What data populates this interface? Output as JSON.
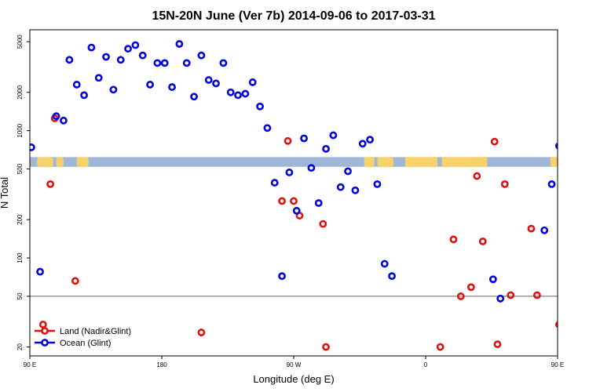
{
  "chart_data": {
    "type": "scatter",
    "title": "15N-20N June (Ver 7b)   2014-09-06 to 2017-03-31",
    "xlabel": "Longitude (deg E)",
    "ylabel": "N Total",
    "xlim": [
      90,
      450
    ],
    "ylim": [
      17,
      6200
    ],
    "y_scale": "log",
    "x_ticks": [
      {
        "value": 90,
        "label": "90 E"
      },
      {
        "value": 180,
        "label": "180"
      },
      {
        "value": 270,
        "label": "90 W"
      },
      {
        "value": 360,
        "label": "0"
      },
      {
        "value": 450,
        "label": "90 E"
      }
    ],
    "y_ticks": [
      {
        "value": 20,
        "label": "20"
      },
      {
        "value": 50,
        "label": "50"
      },
      {
        "value": 100,
        "label": "100"
      },
      {
        "value": 200,
        "label": "200"
      },
      {
        "value": 500,
        "label": "500"
      },
      {
        "value": 1000,
        "label": "1000"
      },
      {
        "value": 2000,
        "label": "2000"
      },
      {
        "value": 5000,
        "label": "5000"
      }
    ],
    "reference_line": {
      "y": 50,
      "color": "#666666"
    },
    "map_strip": {
      "y_range": [
        520,
        620
      ],
      "ocean_color": "#9fb6d8",
      "land_color": "#f7d26a"
    },
    "legend": {
      "position": "bottom-left"
    },
    "series": [
      {
        "name": "Land (Nadir&Glint)",
        "color": "#e01010",
        "points": [
          [
            99,
            30
          ],
          [
            104,
            380
          ],
          [
            107,
            1250
          ],
          [
            121,
            66
          ],
          [
            207,
            26
          ],
          [
            262,
            280
          ],
          [
            266,
            830
          ],
          [
            270,
            280
          ],
          [
            274,
            215
          ],
          [
            290,
            185
          ],
          [
            292,
            20
          ],
          [
            370,
            20
          ],
          [
            379,
            140
          ],
          [
            384,
            50
          ],
          [
            391,
            59
          ],
          [
            395,
            440
          ],
          [
            399,
            135
          ],
          [
            407,
            820
          ],
          [
            409,
            21
          ],
          [
            414,
            380
          ],
          [
            418,
            51
          ],
          [
            432,
            170
          ],
          [
            436,
            51
          ],
          [
            451,
            30
          ],
          [
            454,
            380
          ],
          [
            456,
            1250
          ],
          [
            467,
            66
          ]
        ]
      },
      {
        "name": "Ocean (Glint)",
        "color": "#0000e0",
        "points": [
          [
            91,
            740
          ],
          [
            97,
            78
          ],
          [
            108,
            1300
          ],
          [
            113,
            1200
          ],
          [
            117,
            3600
          ],
          [
            122,
            2300
          ],
          [
            127,
            1900
          ],
          [
            132,
            4500
          ],
          [
            137,
            2600
          ],
          [
            142,
            3800
          ],
          [
            147,
            2100
          ],
          [
            152,
            3600
          ],
          [
            157,
            4400
          ],
          [
            162,
            4700
          ],
          [
            167,
            3900
          ],
          [
            172,
            2300
          ],
          [
            177,
            3400
          ],
          [
            182,
            3400
          ],
          [
            187,
            2200
          ],
          [
            192,
            4800
          ],
          [
            197,
            3400
          ],
          [
            202,
            1850
          ],
          [
            207,
            3900
          ],
          [
            212,
            2500
          ],
          [
            217,
            2350
          ],
          [
            222,
            3400
          ],
          [
            227,
            2000
          ],
          [
            232,
            1900
          ],
          [
            237,
            1950
          ],
          [
            242,
            2400
          ],
          [
            247,
            1550
          ],
          [
            252,
            1050
          ],
          [
            257,
            390
          ],
          [
            262,
            72
          ],
          [
            267,
            470
          ],
          [
            272,
            235
          ],
          [
            277,
            870
          ],
          [
            282,
            510
          ],
          [
            287,
            270
          ],
          [
            292,
            720
          ],
          [
            297,
            920
          ],
          [
            302,
            360
          ],
          [
            307,
            480
          ],
          [
            312,
            340
          ],
          [
            317,
            790
          ],
          [
            322,
            850
          ],
          [
            327,
            380
          ],
          [
            332,
            90
          ],
          [
            337,
            72
          ],
          [
            406,
            68
          ],
          [
            411,
            48
          ],
          [
            441,
            165
          ],
          [
            446,
            380
          ],
          [
            451,
            760
          ]
        ]
      }
    ]
  }
}
